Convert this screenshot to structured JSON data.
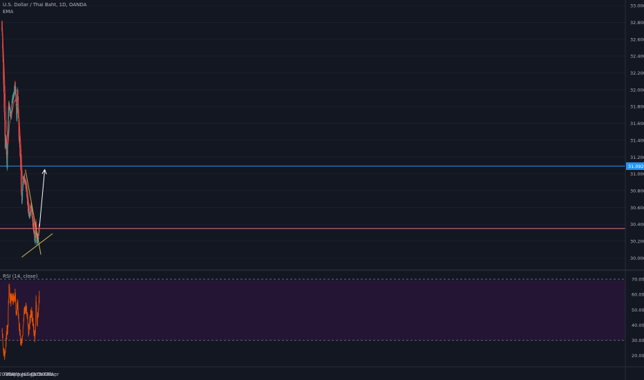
{
  "legend": {
    "symbol": "U.S. Dollar / Thai Baht, 1D, OANDA",
    "indicator": "EMA",
    "rsi": "RSI (14, close)"
  },
  "colors": {
    "background": "#131722",
    "up": "#26a69a",
    "down": "#ef5350",
    "ema": "#e53935",
    "trendline": "#c9b458",
    "resistance": "#2196f3",
    "support": "#e57373",
    "projection": "#ffffff",
    "rsi_line": "#e65100",
    "rsi_band": "#241534",
    "axis_text": "#b2b5be"
  },
  "chart_data": [
    {
      "type": "candlestick",
      "title": "U.S. Dollar / Thai Baht, 1D, OANDA",
      "x_ticks": [
        "2019",
        "Feb",
        "Mar",
        "Apr",
        "May",
        "Jun",
        "Jul",
        "Aug",
        "Sep",
        "Oct",
        "Nov",
        "Dec",
        "2020",
        "Feb",
        "Mar",
        "Apr"
      ],
      "y_ticks": [
        "33.000",
        "32.800",
        "32.600",
        "32.400",
        "32.200",
        "32.000",
        "31.800",
        "31.600",
        "31.400",
        "31.200",
        "31.000",
        "30.800",
        "30.600",
        "30.400",
        "30.200",
        "30.000"
      ],
      "ylim": [
        29.88,
        33.05
      ],
      "current_price_label": "31.092",
      "horizontal_levels": [
        {
          "name": "resistance",
          "value": 31.092
        },
        {
          "name": "support",
          "value": 30.35
        }
      ],
      "close_path": [
        {
          "date": "2019-01-01",
          "close": 32.75
        },
        {
          "date": "2019-01-10",
          "close": 32.35
        },
        {
          "date": "2019-01-20",
          "close": 31.85
        },
        {
          "date": "2019-01-31",
          "close": 31.3
        },
        {
          "date": "2019-02-06",
          "close": 31.45
        },
        {
          "date": "2019-02-15",
          "close": 31.12
        },
        {
          "date": "2019-02-22",
          "close": 31.35
        },
        {
          "date": "2019-03-02",
          "close": 31.85
        },
        {
          "date": "2019-03-15",
          "close": 31.72
        },
        {
          "date": "2019-03-25",
          "close": 31.68
        },
        {
          "date": "2019-04-05",
          "close": 31.88
        },
        {
          "date": "2019-04-18",
          "close": 31.92
        },
        {
          "date": "2019-04-28",
          "close": 32.05
        },
        {
          "date": "2019-05-06",
          "close": 31.95
        },
        {
          "date": "2019-05-14",
          "close": 31.62
        },
        {
          "date": "2019-05-22",
          "close": 31.98
        },
        {
          "date": "2019-05-28",
          "close": 31.8
        },
        {
          "date": "2019-06-06",
          "close": 31.4
        },
        {
          "date": "2019-06-18",
          "close": 31.18
        },
        {
          "date": "2019-06-25",
          "close": 30.82
        },
        {
          "date": "2019-07-01",
          "close": 30.68
        },
        {
          "date": "2019-07-10",
          "close": 30.9
        },
        {
          "date": "2019-07-25",
          "close": 30.95
        },
        {
          "date": "2019-08-10",
          "close": 30.85
        },
        {
          "date": "2019-08-25",
          "close": 30.6
        },
        {
          "date": "2019-09-10",
          "close": 30.5
        },
        {
          "date": "2019-09-25",
          "close": 30.62
        },
        {
          "date": "2019-10-10",
          "close": 30.4
        },
        {
          "date": "2019-10-20",
          "close": 30.3
        },
        {
          "date": "2019-10-30",
          "close": 30.2
        },
        {
          "date": "2019-11-05",
          "close": 30.4
        },
        {
          "date": "2019-11-12",
          "close": 30.22
        },
        {
          "date": "2019-11-25",
          "close": 30.23
        },
        {
          "date": "2019-12-04",
          "close": 30.35
        }
      ],
      "ema_path": [
        {
          "date": "2019-01-01",
          "value": 32.82
        },
        {
          "date": "2019-01-20",
          "value": 32.25
        },
        {
          "date": "2019-02-10",
          "value": 31.55
        },
        {
          "date": "2019-02-25",
          "value": 31.35
        },
        {
          "date": "2019-03-10",
          "value": 31.6
        },
        {
          "date": "2019-04-01",
          "value": 31.72
        },
        {
          "date": "2019-04-20",
          "value": 31.85
        },
        {
          "date": "2019-05-10",
          "value": 31.9
        },
        {
          "date": "2019-05-25",
          "value": 31.87
        },
        {
          "date": "2019-06-10",
          "value": 31.55
        },
        {
          "date": "2019-06-25",
          "value": 31.25
        },
        {
          "date": "2019-07-05",
          "value": 30.95
        },
        {
          "date": "2019-07-20",
          "value": 30.9
        },
        {
          "date": "2019-08-15",
          "value": 30.85
        },
        {
          "date": "2019-09-01",
          "value": 30.65
        },
        {
          "date": "2019-09-25",
          "value": 30.55
        },
        {
          "date": "2019-10-15",
          "value": 30.45
        },
        {
          "date": "2019-11-05",
          "value": 30.32
        },
        {
          "date": "2019-11-25",
          "value": 30.24
        },
        {
          "date": "2019-12-05",
          "value": 30.3
        }
      ],
      "trendlines": [
        {
          "name": "descending-resistance",
          "from": {
            "date": "2019-08-01",
            "value": 31.05
          },
          "to": {
            "date": "2019-12-20",
            "value": 30.04
          }
        },
        {
          "name": "ascending-support",
          "from": {
            "date": "2019-06-29",
            "value": 30.01
          },
          "to": {
            "date": "2020-04-05",
            "value": 30.29
          }
        },
        {
          "name": "projection",
          "from": {
            "date": "2019-12-07",
            "value": 30.37
          },
          "to": {
            "date": "2020-01-24",
            "value": 31.05
          }
        }
      ]
    },
    {
      "type": "line",
      "title": "RSI (14, close)",
      "y_ticks": [
        "70.00",
        "60.00",
        "50.00",
        "40.00",
        "30.00",
        "20.00"
      ],
      "ylim": [
        14,
        75
      ],
      "overbought": 70,
      "oversold": 30,
      "series": [
        {
          "points": [
            {
              "date": "2019-01-01",
              "value": 40
            },
            {
              "date": "2019-01-12",
              "value": 24
            },
            {
              "date": "2019-01-28",
              "value": 20
            },
            {
              "date": "2019-02-06",
              "value": 30
            },
            {
              "date": "2019-02-16",
              "value": 38
            },
            {
              "date": "2019-02-22",
              "value": 35
            },
            {
              "date": "2019-03-04",
              "value": 64
            },
            {
              "date": "2019-03-18",
              "value": 57
            },
            {
              "date": "2019-04-01",
              "value": 56
            },
            {
              "date": "2019-04-15",
              "value": 58
            },
            {
              "date": "2019-04-30",
              "value": 60
            },
            {
              "date": "2019-05-10",
              "value": 45
            },
            {
              "date": "2019-05-22",
              "value": 54
            },
            {
              "date": "2019-05-30",
              "value": 45
            },
            {
              "date": "2019-06-12",
              "value": 35
            },
            {
              "date": "2019-06-28",
              "value": 27
            },
            {
              "date": "2019-07-08",
              "value": 35
            },
            {
              "date": "2019-07-20",
              "value": 48
            },
            {
              "date": "2019-08-02",
              "value": 52
            },
            {
              "date": "2019-08-16",
              "value": 48
            },
            {
              "date": "2019-08-30",
              "value": 36
            },
            {
              "date": "2019-09-10",
              "value": 42
            },
            {
              "date": "2019-09-25",
              "value": 48
            },
            {
              "date": "2019-10-06",
              "value": 44
            },
            {
              "date": "2019-10-18",
              "value": 36
            },
            {
              "date": "2019-10-30",
              "value": 31
            },
            {
              "date": "2019-11-06",
              "value": 57
            },
            {
              "date": "2019-11-14",
              "value": 42
            },
            {
              "date": "2019-11-26",
              "value": 45
            },
            {
              "date": "2019-12-06",
              "value": 59
            }
          ]
        }
      ]
    }
  ]
}
